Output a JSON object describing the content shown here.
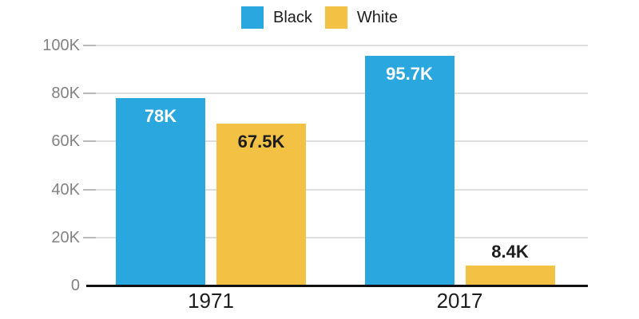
{
  "chart_data": {
    "type": "bar",
    "title": "",
    "xlabel": "",
    "ylabel": "",
    "categories": [
      "1971",
      "2017"
    ],
    "series": [
      {
        "name": "Black",
        "color": "#29A7DE",
        "values": [
          78,
          95.7
        ],
        "value_labels": [
          "78K",
          "95.7K"
        ],
        "label_color": "#ffffff"
      },
      {
        "name": "White",
        "color": "#F3C244",
        "values": [
          67.5,
          8.4
        ],
        "value_labels": [
          "67.5K",
          "8.4K"
        ],
        "label_color": "#1d1d1d"
      }
    ],
    "ylim": [
      0,
      100
    ],
    "yticks": [
      {
        "value": 100,
        "label": "100K"
      },
      {
        "value": 80,
        "label": "80K"
      },
      {
        "value": 60,
        "label": "60K"
      },
      {
        "value": 40,
        "label": "40K"
      },
      {
        "value": 20,
        "label": "20K"
      },
      {
        "value": 0,
        "label": "0"
      }
    ],
    "legend_position": "top",
    "grid": "horizontal"
  },
  "colors": {
    "background": "#ffffff",
    "gridline": "#dedede",
    "tick": "#b9b9b9",
    "axis": "#111111",
    "y_label_text": "#828282",
    "x_label_text": "#1d1d1d",
    "legend_text": "#1d1d1d",
    "outside_label_text": "#1d1d1d"
  }
}
